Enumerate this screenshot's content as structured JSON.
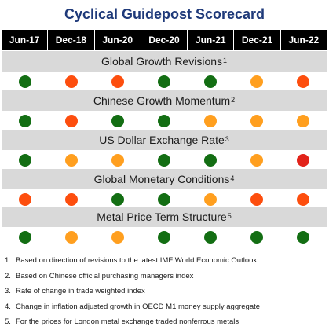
{
  "title": "Cyclical Guidepost Scorecard",
  "periods": [
    "Jun-17",
    "Dec-18",
    "Jun-20",
    "Dec-20",
    "Jun-21",
    "Dec-21",
    "Jun-22"
  ],
  "colors": {
    "green": "#136e13",
    "orange": "#ff9f1f",
    "red_orange": "#fd4e0e",
    "red": "#e2231a",
    "header_bg": "#000000",
    "band_bg": "#d9d9d9",
    "title": "#1f3a7a"
  },
  "sections": [
    {
      "label": "Global Growth Revisions",
      "note_ref": "1",
      "signals": [
        "green",
        "red_orange",
        "red_orange",
        "green",
        "green",
        "orange",
        "red_orange"
      ]
    },
    {
      "label": "Chinese Growth Momentum",
      "note_ref": "2",
      "signals": [
        "green",
        "red_orange",
        "green",
        "green",
        "orange",
        "orange",
        "orange"
      ]
    },
    {
      "label": "US Dollar Exchange Rate",
      "note_ref": "3",
      "signals": [
        "green",
        "orange",
        "orange",
        "green",
        "green",
        "orange",
        "red"
      ]
    },
    {
      "label": "Global Monetary Conditions",
      "note_ref": "4",
      "signals": [
        "red_orange",
        "red_orange",
        "green",
        "green",
        "orange",
        "red_orange",
        "red_orange"
      ]
    },
    {
      "label": "Metal Price Term Structure",
      "note_ref": "5",
      "signals": [
        "green",
        "orange",
        "orange",
        "green",
        "green",
        "green",
        "green"
      ]
    }
  ],
  "notes": [
    {
      "num": "1.",
      "text": "Based on direction of revisions to the latest IMF World Economic Outlook"
    },
    {
      "num": "2.",
      "text": "Based on Chinese official purchasing managers index"
    },
    {
      "num": "3.",
      "text": "Rate of change in trade weighted index"
    },
    {
      "num": "4.",
      "text": "Change in inflation adjusted growth in OECD M1 money supply aggregate"
    },
    {
      "num": "5.",
      "text": "For the prices for London metal exchange traded nonferrous metals"
    }
  ]
}
